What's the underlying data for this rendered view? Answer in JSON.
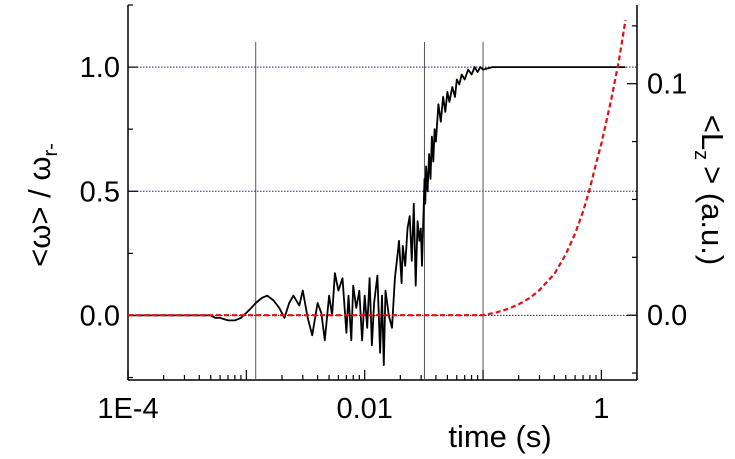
{
  "chart_data": {
    "type": "line",
    "xlabel": "time (s)",
    "ylabel_left_main": "<ω> / ω",
    "ylabel_left_sub": "r-",
    "ylabel_right_pre": "<L",
    "ylabel_right_sub": "z",
    "ylabel_right_post": "> (a.u.)",
    "x_scale": "log",
    "xlim": [
      0.0001,
      2.0
    ],
    "ylim_left": [
      -0.26,
      1.25
    ],
    "ylim_right": [
      -0.028,
      0.134
    ],
    "x_tick_labels": [
      {
        "value": 0.0001,
        "label": "1E-4"
      },
      {
        "value": 0.01,
        "label": "0.01"
      },
      {
        "value": 1,
        "label": "1"
      }
    ],
    "y_left_tick_labels": [
      {
        "value": 0,
        "label": "0.0"
      },
      {
        "value": 0.5,
        "label": "0.5"
      },
      {
        "value": 1,
        "label": "1.0"
      }
    ],
    "y_right_tick_labels": [
      {
        "value": 0,
        "label": "0.0"
      },
      {
        "value": 0.1,
        "label": "0.1"
      }
    ],
    "horizontal_reference_lines": [
      0,
      0.5,
      1.0
    ],
    "horizontal_reference_color": "#1a1aa6",
    "vertical_reference_lines": [
      0.0012,
      0.032,
      0.1
    ],
    "vertical_reference_color": "#555555",
    "series": [
      {
        "axis": "left",
        "color": "#000000",
        "style": "solid",
        "x": [
          0.0001,
          0.0002,
          0.0003,
          0.0004,
          0.0005,
          0.00055,
          0.0006,
          0.0007,
          0.0008,
          0.0009,
          0.001,
          0.0011,
          0.0012,
          0.00135,
          0.0015,
          0.0017,
          0.0019,
          0.0021,
          0.0023,
          0.0025,
          0.0028,
          0.003,
          0.0033,
          0.0036,
          0.004,
          0.0043,
          0.0046,
          0.005,
          0.0053,
          0.0056,
          0.006,
          0.0065,
          0.007,
          0.0073,
          0.0077,
          0.008,
          0.0085,
          0.009,
          0.0095,
          0.01,
          0.0105,
          0.011,
          0.0115,
          0.012,
          0.0128,
          0.0135,
          0.014,
          0.0145,
          0.015,
          0.016,
          0.017,
          0.018,
          0.019,
          0.0195,
          0.0205,
          0.021,
          0.022,
          0.023,
          0.024,
          0.025,
          0.026,
          0.027,
          0.028,
          0.029,
          0.0298,
          0.0305,
          0.032,
          0.0325,
          0.033,
          0.034,
          0.035,
          0.036,
          0.037,
          0.038,
          0.039,
          0.04,
          0.042,
          0.044,
          0.046,
          0.048,
          0.05,
          0.052,
          0.055,
          0.058,
          0.06,
          0.063,
          0.066,
          0.07,
          0.075,
          0.08,
          0.085,
          0.09,
          0.095,
          0.1,
          0.12,
          0.15,
          0.2,
          0.3,
          0.5,
          0.8,
          1.0,
          1.3,
          1.6
        ],
        "y": [
          0.0,
          0.0,
          0.0,
          0.0,
          0.0,
          -0.01,
          -0.01,
          -0.02,
          -0.02,
          -0.01,
          0.01,
          0.03,
          0.05,
          0.07,
          0.08,
          0.06,
          0.03,
          -0.01,
          0.05,
          0.08,
          0.04,
          0.1,
          -0.01,
          -0.08,
          0.05,
          0.01,
          -0.1,
          0.08,
          0.0,
          0.17,
          0.1,
          0.15,
          -0.07,
          0.08,
          -0.1,
          0.12,
          0.03,
          0.1,
          -0.1,
          0.08,
          -0.05,
          0.15,
          -0.12,
          0.05,
          0.16,
          -0.15,
          0.08,
          -0.2,
          0.1,
          0.0,
          -0.05,
          0.15,
          0.25,
          0.3,
          0.13,
          0.28,
          0.2,
          0.35,
          0.4,
          0.22,
          0.45,
          0.12,
          0.38,
          0.3,
          0.35,
          0.2,
          0.55,
          0.45,
          0.6,
          0.5,
          0.65,
          0.55,
          0.72,
          0.62,
          0.75,
          0.7,
          0.85,
          0.78,
          0.88,
          0.82,
          0.9,
          0.86,
          0.92,
          0.88,
          0.95,
          0.93,
          0.97,
          0.95,
          0.99,
          0.97,
          1.0,
          0.98,
          1.0,
          0.99,
          1.0,
          1.0,
          1.0,
          1.0,
          1.0,
          1.0,
          1.0,
          1.0,
          1.0
        ]
      },
      {
        "axis": "right",
        "color": "#e01010",
        "style": "dashed",
        "x": [
          0.0001,
          0.001,
          0.01,
          0.05,
          0.1,
          0.13,
          0.16,
          0.2,
          0.25,
          0.3,
          0.4,
          0.5,
          0.6,
          0.7,
          0.8,
          0.9,
          1.0,
          1.2,
          1.4,
          1.6
        ],
        "y": [
          0.0,
          0.0,
          0.0,
          0.0,
          0.0,
          0.0012,
          0.0026,
          0.0047,
          0.0075,
          0.0109,
          0.0178,
          0.0262,
          0.0352,
          0.0447,
          0.0548,
          0.0654,
          0.0742,
          0.0921,
          0.1095,
          0.1275
        ]
      }
    ]
  }
}
